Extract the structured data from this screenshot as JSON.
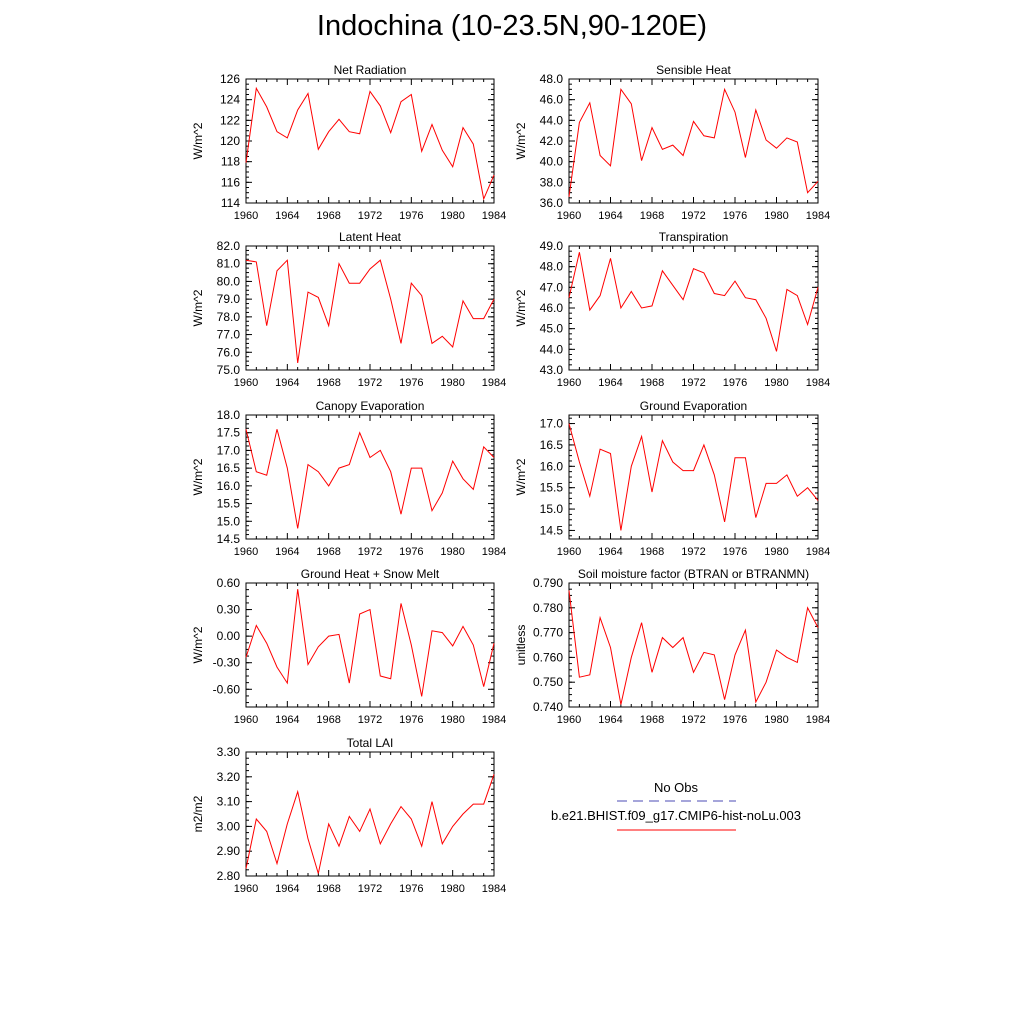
{
  "title": "Indochina (10-23.5N,90-120E)",
  "colors": {
    "model": "#ff0000",
    "obs": "#4b4bb4",
    "axis": "#000000"
  },
  "legend": {
    "obs_label": "No Obs",
    "model_label": "b.e21.BHIST.f09_g17.CMIP6-hist-noLu.003"
  },
  "chart_data": [
    {
      "type": "line",
      "title": "Net Radiation",
      "ylabel": "W/m^2",
      "xlim": [
        1960,
        1984
      ],
      "ylim": [
        114,
        126
      ],
      "xticks": [
        1960,
        1964,
        1968,
        1972,
        1976,
        1980,
        1984
      ],
      "yticks": [
        114,
        116,
        118,
        120,
        122,
        124,
        126
      ],
      "ytick_labels": [
        "114",
        "116",
        "118",
        "120",
        "122",
        "124",
        "126"
      ],
      "x": [
        1960,
        1961,
        1962,
        1963,
        1964,
        1965,
        1966,
        1967,
        1968,
        1969,
        1970,
        1971,
        1972,
        1973,
        1974,
        1975,
        1976,
        1977,
        1978,
        1979,
        1980,
        1981,
        1982,
        1983,
        1984
      ],
      "series": [
        {
          "name": "b.e21.BHIST.f09_g17.CMIP6-hist-noLu.003",
          "values": [
            117.9,
            125.1,
            123.3,
            120.9,
            120.3,
            123.0,
            124.6,
            119.2,
            120.9,
            122.1,
            120.9,
            120.7,
            124.8,
            123.4,
            120.8,
            123.8,
            124.5,
            119.0,
            121.6,
            119.1,
            117.5,
            121.3,
            119.7,
            114.4,
            116.7
          ]
        }
      ]
    },
    {
      "type": "line",
      "title": "Sensible Heat",
      "ylabel": "W/m^2",
      "xlim": [
        1960,
        1984
      ],
      "ylim": [
        36,
        48
      ],
      "xticks": [
        1960,
        1964,
        1968,
        1972,
        1976,
        1980,
        1984
      ],
      "yticks": [
        36,
        38,
        40,
        42,
        44,
        46,
        48
      ],
      "ytick_labels": [
        "36.0",
        "38.0",
        "40.0",
        "42.0",
        "44.0",
        "46.0",
        "48.0"
      ],
      "x": [
        1960,
        1961,
        1962,
        1963,
        1964,
        1965,
        1966,
        1967,
        1968,
        1969,
        1970,
        1971,
        1972,
        1973,
        1974,
        1975,
        1976,
        1977,
        1978,
        1979,
        1980,
        1981,
        1982,
        1983,
        1984
      ],
      "series": [
        {
          "name": "b.e21.BHIST.f09_g17.CMIP6-hist-noLu.003",
          "values": [
            36.6,
            43.8,
            45.7,
            40.6,
            39.6,
            47.0,
            45.6,
            40.1,
            43.3,
            41.2,
            41.6,
            40.6,
            43.9,
            42.5,
            42.3,
            47.0,
            44.8,
            40.4,
            45.0,
            42.1,
            41.3,
            42.3,
            41.9,
            37.0,
            38.1
          ]
        }
      ]
    },
    {
      "type": "line",
      "title": "Latent Heat",
      "ylabel": "W/m^2",
      "xlim": [
        1960,
        1984
      ],
      "ylim": [
        75,
        82
      ],
      "xticks": [
        1960,
        1964,
        1968,
        1972,
        1976,
        1980,
        1984
      ],
      "yticks": [
        75,
        76,
        77,
        78,
        79,
        80,
        81,
        82
      ],
      "ytick_labels": [
        "75.0",
        "76.0",
        "77.0",
        "78.0",
        "79.0",
        "80.0",
        "81.0",
        "82.0"
      ],
      "x": [
        1960,
        1961,
        1962,
        1963,
        1964,
        1965,
        1966,
        1967,
        1968,
        1969,
        1970,
        1971,
        1972,
        1973,
        1974,
        1975,
        1976,
        1977,
        1978,
        1979,
        1980,
        1981,
        1982,
        1983,
        1984
      ],
      "series": [
        {
          "name": "b.e21.BHIST.f09_g17.CMIP6-hist-noLu.003",
          "values": [
            81.2,
            81.1,
            77.5,
            80.6,
            81.2,
            75.4,
            79.4,
            79.1,
            77.5,
            81.0,
            79.9,
            79.9,
            80.7,
            81.2,
            79.0,
            76.5,
            79.9,
            79.2,
            76.5,
            76.9,
            76.3,
            78.9,
            77.9,
            77.9,
            79.0
          ]
        }
      ]
    },
    {
      "type": "line",
      "title": "Transpiration",
      "ylabel": "W/m^2",
      "xlim": [
        1960,
        1984
      ],
      "ylim": [
        43,
        49
      ],
      "xticks": [
        1960,
        1964,
        1968,
        1972,
        1976,
        1980,
        1984
      ],
      "yticks": [
        43,
        44,
        45,
        46,
        47,
        48,
        49
      ],
      "ytick_labels": [
        "43.0",
        "44.0",
        "45.0",
        "46.0",
        "47.0",
        "48.0",
        "49.0"
      ],
      "x": [
        1960,
        1961,
        1962,
        1963,
        1964,
        1965,
        1966,
        1967,
        1968,
        1969,
        1970,
        1971,
        1972,
        1973,
        1974,
        1975,
        1976,
        1977,
        1978,
        1979,
        1980,
        1981,
        1982,
        1983,
        1984
      ],
      "series": [
        {
          "name": "b.e21.BHIST.f09_g17.CMIP6-hist-noLu.003",
          "values": [
            46.5,
            48.7,
            45.9,
            46.6,
            48.4,
            46.0,
            46.8,
            46.0,
            46.1,
            47.8,
            47.1,
            46.4,
            47.9,
            47.7,
            46.7,
            46.6,
            47.3,
            46.5,
            46.4,
            45.5,
            43.9,
            46.9,
            46.6,
            45.2,
            47.0
          ]
        }
      ]
    },
    {
      "type": "line",
      "title": "Canopy Evaporation",
      "ylabel": "W/m^2",
      "xlim": [
        1960,
        1984
      ],
      "ylim": [
        14.5,
        18
      ],
      "xticks": [
        1960,
        1964,
        1968,
        1972,
        1976,
        1980,
        1984
      ],
      "yticks": [
        14.5,
        15,
        15.5,
        16,
        16.5,
        17,
        17.5,
        18
      ],
      "ytick_labels": [
        "14.5",
        "15.0",
        "15.5",
        "16.0",
        "16.5",
        "17.0",
        "17.5",
        "18.0"
      ],
      "x": [
        1960,
        1961,
        1962,
        1963,
        1964,
        1965,
        1966,
        1967,
        1968,
        1969,
        1970,
        1971,
        1972,
        1973,
        1974,
        1975,
        1976,
        1977,
        1978,
        1979,
        1980,
        1981,
        1982,
        1983,
        1984
      ],
      "series": [
        {
          "name": "b.e21.BHIST.f09_g17.CMIP6-hist-noLu.003",
          "values": [
            17.6,
            16.4,
            16.3,
            17.6,
            16.5,
            14.8,
            16.6,
            16.4,
            16.0,
            16.5,
            16.6,
            17.5,
            16.8,
            17.0,
            16.4,
            15.2,
            16.5,
            16.5,
            15.3,
            15.8,
            16.7,
            16.2,
            15.9,
            17.1,
            16.8
          ]
        }
      ]
    },
    {
      "type": "line",
      "title": "Ground Evaporation",
      "ylabel": "W/m^2",
      "xlim": [
        1960,
        1984
      ],
      "ylim": [
        14.3,
        17.2
      ],
      "xticks": [
        1960,
        1964,
        1968,
        1972,
        1976,
        1980,
        1984
      ],
      "yticks": [
        14.5,
        15,
        15.5,
        16,
        16.5,
        17
      ],
      "ytick_labels": [
        "14.5",
        "15.0",
        "15.5",
        "16.0",
        "16.5",
        "17.0"
      ],
      "x": [
        1960,
        1961,
        1962,
        1963,
        1964,
        1965,
        1966,
        1967,
        1968,
        1969,
        1970,
        1971,
        1972,
        1973,
        1974,
        1975,
        1976,
        1977,
        1978,
        1979,
        1980,
        1981,
        1982,
        1983,
        1984
      ],
      "series": [
        {
          "name": "b.e21.BHIST.f09_g17.CMIP6-hist-noLu.003",
          "values": [
            17.0,
            16.1,
            15.3,
            16.4,
            16.3,
            14.5,
            16.0,
            16.7,
            15.4,
            16.6,
            16.1,
            15.9,
            15.9,
            16.5,
            15.8,
            14.7,
            16.2,
            16.2,
            14.8,
            15.6,
            15.6,
            15.8,
            15.3,
            15.5,
            15.2
          ]
        }
      ]
    },
    {
      "type": "line",
      "title": "Ground Heat + Snow Melt",
      "ylabel": "W/m^2",
      "xlim": [
        1960,
        1984
      ],
      "ylim": [
        -0.8,
        0.6
      ],
      "xticks": [
        1960,
        1964,
        1968,
        1972,
        1976,
        1980,
        1984
      ],
      "yticks": [
        -0.6,
        -0.3,
        0,
        0.3,
        0.6
      ],
      "ytick_labels": [
        "-0.60",
        "-0.30",
        "0.00",
        "0.30",
        "0.60"
      ],
      "x": [
        1960,
        1961,
        1962,
        1963,
        1964,
        1965,
        1966,
        1967,
        1968,
        1969,
        1970,
        1971,
        1972,
        1973,
        1974,
        1975,
        1976,
        1977,
        1978,
        1979,
        1980,
        1981,
        1982,
        1983,
        1984
      ],
      "series": [
        {
          "name": "b.e21.BHIST.f09_g17.CMIP6-hist-noLu.003",
          "values": [
            -0.24,
            0.12,
            -0.08,
            -0.35,
            -0.53,
            0.53,
            -0.32,
            -0.12,
            0.0,
            0.02,
            -0.53,
            0.25,
            0.3,
            -0.45,
            -0.48,
            0.37,
            -0.1,
            -0.68,
            0.06,
            0.04,
            -0.11,
            0.11,
            -0.1,
            -0.57,
            -0.08
          ]
        }
      ]
    },
    {
      "type": "line",
      "title": "Soil moisture factor (BTRAN or BTRANMN)",
      "ylabel": "unitless",
      "xlim": [
        1960,
        1984
      ],
      "ylim": [
        0.74,
        0.79
      ],
      "xticks": [
        1960,
        1964,
        1968,
        1972,
        1976,
        1980,
        1984
      ],
      "yticks": [
        0.74,
        0.75,
        0.76,
        0.77,
        0.78,
        0.79
      ],
      "ytick_labels": [
        "0.740",
        "0.750",
        "0.760",
        "0.770",
        "0.780",
        "0.790"
      ],
      "x": [
        1960,
        1961,
        1962,
        1963,
        1964,
        1965,
        1966,
        1967,
        1968,
        1969,
        1970,
        1971,
        1972,
        1973,
        1974,
        1975,
        1976,
        1977,
        1978,
        1979,
        1980,
        1981,
        1982,
        1983,
        1984
      ],
      "series": [
        {
          "name": "b.e21.BHIST.f09_g17.CMIP6-hist-noLu.003",
          "values": [
            0.787,
            0.752,
            0.753,
            0.776,
            0.764,
            0.741,
            0.76,
            0.774,
            0.754,
            0.768,
            0.764,
            0.768,
            0.754,
            0.762,
            0.761,
            0.743,
            0.761,
            0.771,
            0.742,
            0.75,
            0.763,
            0.76,
            0.758,
            0.78,
            0.772
          ]
        }
      ]
    },
    {
      "type": "line",
      "title": "Total LAI",
      "ylabel": "m2/m2",
      "xlim": [
        1960,
        1984
      ],
      "ylim": [
        2.8,
        3.3
      ],
      "xticks": [
        1960,
        1964,
        1968,
        1972,
        1976,
        1980,
        1984
      ],
      "yticks": [
        2.8,
        2.9,
        3.0,
        3.1,
        3.2,
        3.3
      ],
      "ytick_labels": [
        "2.80",
        "2.90",
        "3.00",
        "3.10",
        "3.20",
        "3.30"
      ],
      "x": [
        1960,
        1961,
        1962,
        1963,
        1964,
        1965,
        1966,
        1967,
        1968,
        1969,
        1970,
        1971,
        1972,
        1973,
        1974,
        1975,
        1976,
        1977,
        1978,
        1979,
        1980,
        1981,
        1982,
        1983,
        1984
      ],
      "series": [
        {
          "name": "b.e21.BHIST.f09_g17.CMIP6-hist-noLu.003",
          "values": [
            2.83,
            3.03,
            2.98,
            2.85,
            3.01,
            3.14,
            2.95,
            2.81,
            3.01,
            2.92,
            3.04,
            2.98,
            3.07,
            2.93,
            3.01,
            3.08,
            3.03,
            2.92,
            3.1,
            2.93,
            3.0,
            3.05,
            3.09,
            3.09,
            3.21
          ]
        }
      ]
    }
  ]
}
